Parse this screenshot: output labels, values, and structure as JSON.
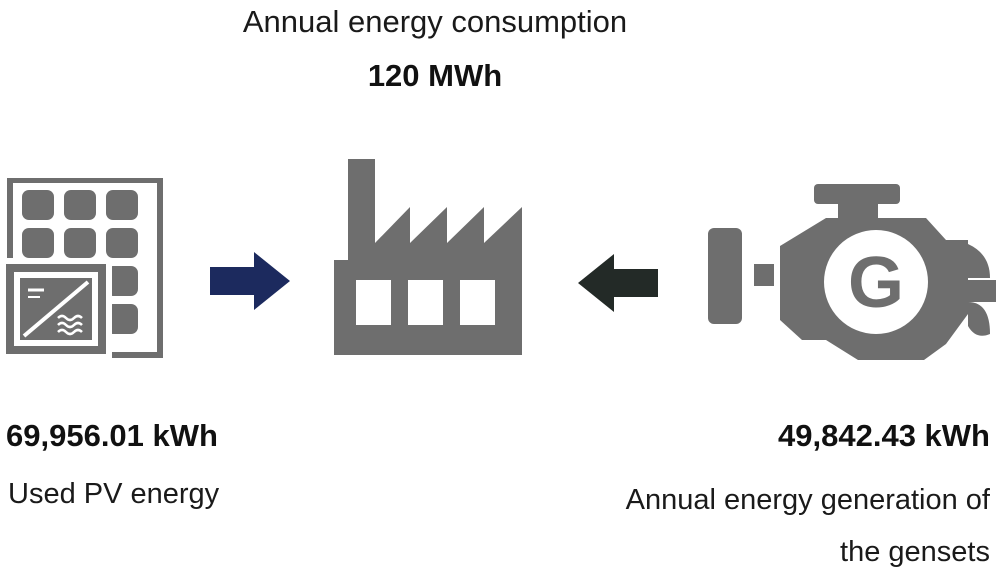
{
  "header": {
    "title": "Annual energy consumption",
    "total": "120 MWh"
  },
  "pv": {
    "value": "69,956.01 kWh",
    "label": "Used PV energy",
    "icon": "solar-panel-inverter-icon"
  },
  "factory": {
    "icon": "factory-icon"
  },
  "genset": {
    "value": "49,842.43 kWh",
    "label_line1": "Annual energy generation of",
    "label_line2": "the gensets",
    "icon": "generator-engine-icon"
  },
  "colors": {
    "icon_gray": "#6e6e6e",
    "pv_arrow": "#1c2a5e",
    "genset_arrow": "#232a27",
    "text": "#111111"
  }
}
